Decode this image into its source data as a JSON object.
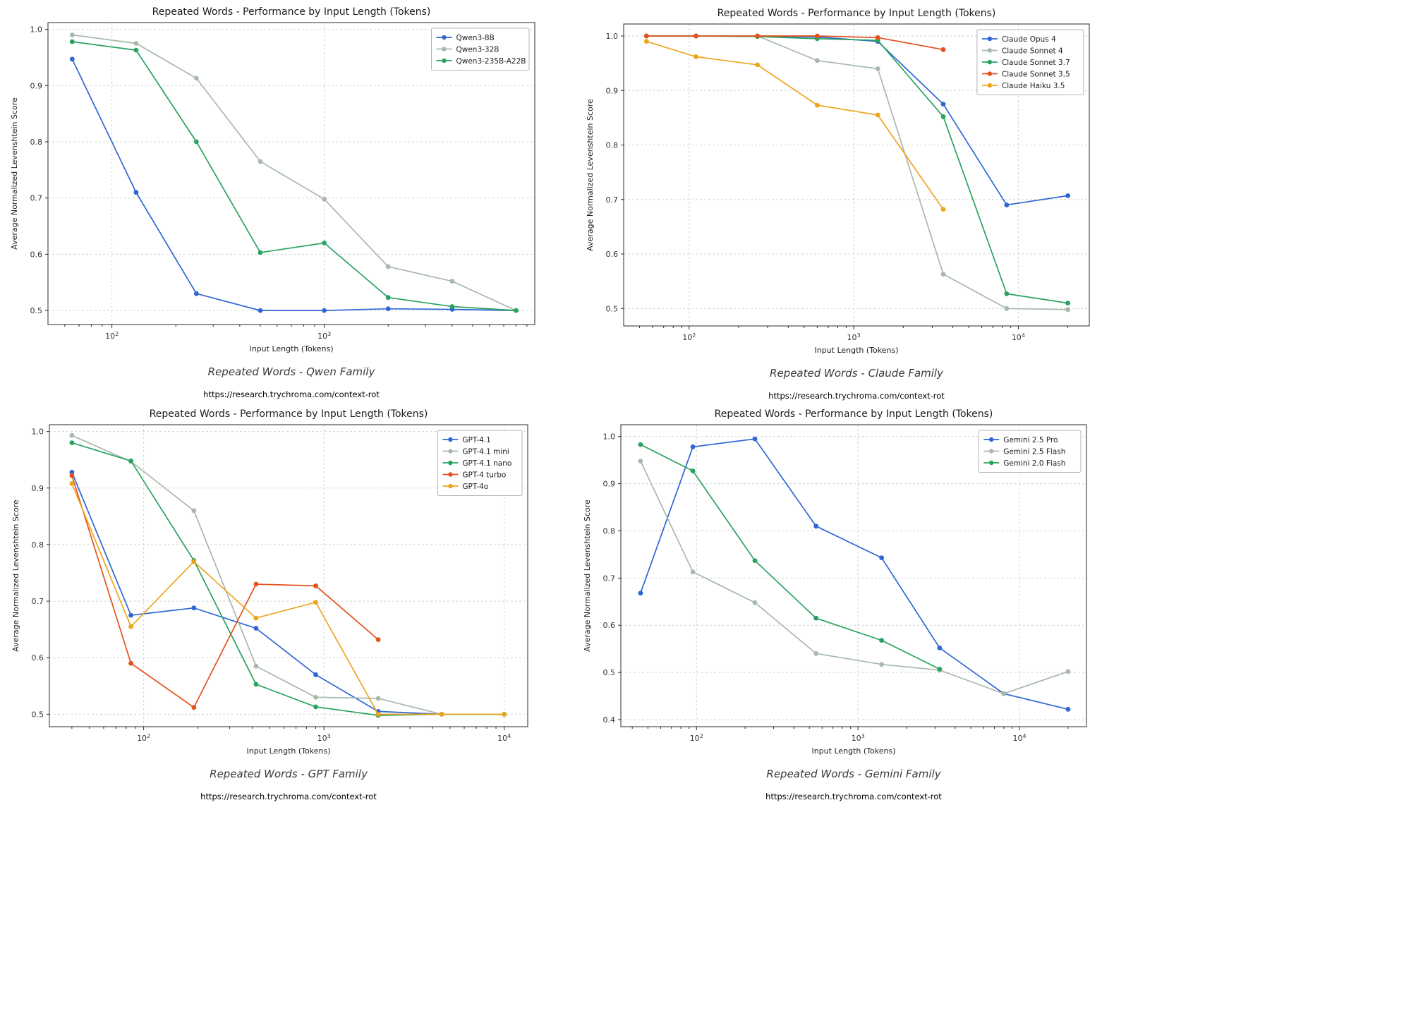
{
  "chart_data": [
    {
      "type": "line",
      "title": "Repeated Words - Performance by Input Length (Tokens)",
      "xlabel": "Input Length (Tokens)",
      "ylabel": "Average Normalized Levenshtein Score",
      "caption": "Repeated Words - Qwen Family",
      "url": "https://research.trychroma.com/context-rot",
      "xscale": "log",
      "xlim": [
        50,
        9800
      ],
      "ylim": [
        0.475,
        1.012
      ],
      "yticks": [
        0.5,
        0.6,
        0.7,
        0.8,
        0.9,
        1.0
      ],
      "grid": true,
      "legend_position": "upper right",
      "series": [
        {
          "name": "Qwen3-8B",
          "color": "#2e66d3",
          "x": [
            65,
            130,
            250,
            500,
            1000,
            2000,
            4000,
            8000
          ],
          "y": [
            0.947,
            0.71,
            0.53,
            0.5,
            0.5,
            0.503,
            0.502,
            0.5
          ]
        },
        {
          "name": "Qwen3-32B",
          "color": "#a8b9ab",
          "x": [
            65,
            130,
            250,
            500,
            1000,
            2000,
            4000,
            8000
          ],
          "y": [
            0.99,
            0.975,
            0.913,
            0.765,
            0.698,
            0.578,
            0.552,
            0.5
          ]
        },
        {
          "name": "Qwen3-235B-A22B",
          "color": "#29a25f",
          "x": [
            65,
            130,
            250,
            500,
            1000,
            2000,
            4000,
            8000
          ],
          "y": [
            0.978,
            0.963,
            0.8,
            0.603,
            0.62,
            0.523,
            0.507,
            0.5
          ]
        }
      ]
    },
    {
      "type": "line",
      "title": "Repeated Words - Performance by Input Length (Tokens)",
      "xlabel": "Input Length (Tokens)",
      "ylabel": "Average Normalized Levenshtein Score",
      "caption": "Repeated Words - Claude Family",
      "url": "https://research.trychroma.com/context-rot",
      "xscale": "log",
      "xlim": [
        40,
        27000
      ],
      "ylim": [
        0.468,
        1.022
      ],
      "yticks": [
        0.5,
        0.6,
        0.7,
        0.8,
        0.9,
        1.0
      ],
      "grid": true,
      "legend_position": "upper right",
      "series": [
        {
          "name": "Claude Opus 4",
          "color": "#2e66d3",
          "x": [
            55,
            110,
            260,
            600,
            1400,
            3500,
            8500,
            20000
          ],
          "y": [
            1.0,
            1.0,
            1.0,
            0.998,
            0.99,
            0.875,
            0.69,
            0.707
          ]
        },
        {
          "name": "Claude Sonnet 4",
          "color": "#a8b9ab",
          "x": [
            55,
            110,
            260,
            600,
            1400,
            3500,
            8500,
            20000
          ],
          "y": [
            1.0,
            1.0,
            1.0,
            0.955,
            0.94,
            0.563,
            0.5,
            0.498
          ]
        },
        {
          "name": "Claude Sonnet 3.7",
          "color": "#29a25f",
          "x": [
            55,
            110,
            260,
            600,
            1400,
            3500,
            8500,
            20000
          ],
          "y": [
            1.0,
            1.0,
            0.999,
            0.995,
            0.992,
            0.852,
            0.527,
            0.51
          ]
        },
        {
          "name": "Claude Sonnet 3.5",
          "color": "#e3511d",
          "x": [
            55,
            110,
            260,
            600,
            1400,
            3500
          ],
          "y": [
            1.0,
            1.0,
            1.0,
            1.0,
            0.997,
            0.975
          ]
        },
        {
          "name": "Claude Haiku 3.5",
          "color": "#eda51e",
          "x": [
            55,
            110,
            260,
            600,
            1400,
            3500
          ],
          "y": [
            0.99,
            0.962,
            0.947,
            0.873,
            0.855,
            0.682
          ]
        }
      ]
    },
    {
      "type": "line",
      "title": "Repeated Words - Performance by Input Length (Tokens)",
      "xlabel": "Input Length (Tokens)",
      "ylabel": "Average Normalized Levenshtein Score",
      "caption": "Repeated Words - GPT Family",
      "url": "https://research.trychroma.com/context-rot",
      "xscale": "log",
      "xlim": [
        30,
        13500
      ],
      "ylim": [
        0.478,
        1.012
      ],
      "yticks": [
        0.5,
        0.6,
        0.7,
        0.8,
        0.9,
        1.0
      ],
      "grid": true,
      "legend_position": "upper right",
      "series": [
        {
          "name": "GPT-4.1",
          "color": "#2e66d3",
          "x": [
            40,
            85,
            190,
            420,
            900,
            2000,
            4500,
            10000
          ],
          "y": [
            0.928,
            0.675,
            0.688,
            0.652,
            0.57,
            0.505,
            0.5,
            0.5
          ]
        },
        {
          "name": "GPT-4.1 mini",
          "color": "#a8b9ab",
          "x": [
            40,
            85,
            190,
            420,
            900,
            2000,
            4500,
            10000
          ],
          "y": [
            0.993,
            0.947,
            0.86,
            0.585,
            0.53,
            0.528,
            0.5,
            0.5
          ]
        },
        {
          "name": "GPT-4.1 nano",
          "color": "#29a25f",
          "x": [
            40,
            85,
            190,
            420,
            900,
            2000,
            4500,
            10000
          ],
          "y": [
            0.98,
            0.948,
            0.772,
            0.553,
            0.513,
            0.498,
            0.5,
            0.5
          ]
        },
        {
          "name": "GPT-4 turbo",
          "color": "#e3511d",
          "x": [
            40,
            85,
            190,
            420,
            900,
            2000
          ],
          "y": [
            0.922,
            0.59,
            0.512,
            0.73,
            0.727,
            0.632
          ]
        },
        {
          "name": "GPT-4o",
          "color": "#eda51e",
          "x": [
            40,
            85,
            190,
            420,
            900,
            2000,
            4500,
            10000
          ],
          "y": [
            0.908,
            0.655,
            0.77,
            0.67,
            0.698,
            0.5,
            0.5,
            0.5
          ]
        }
      ]
    },
    {
      "type": "line",
      "title": "Repeated Words - Performance by Input Length (Tokens)",
      "xlabel": "Input Length (Tokens)",
      "ylabel": "Average Normalized Levenshtein Score",
      "caption": "Repeated Words - Gemini Family",
      "url": "https://research.trychroma.com/context-rot",
      "xscale": "log",
      "xlim": [
        34,
        26000
      ],
      "ylim": [
        0.385,
        1.025
      ],
      "yticks": [
        0.4,
        0.5,
        0.6,
        0.7,
        0.8,
        0.9,
        1.0
      ],
      "grid": true,
      "legend_position": "upper right",
      "series": [
        {
          "name": "Gemini 2.5 Pro",
          "color": "#2e66d3",
          "x": [
            45,
            95,
            230,
            550,
            1400,
            3200,
            8000,
            20000
          ],
          "y": [
            0.668,
            0.978,
            0.995,
            0.81,
            0.743,
            0.552,
            0.455,
            0.422
          ]
        },
        {
          "name": "Gemini 2.5 Flash",
          "color": "#a8b9ab",
          "x": [
            45,
            95,
            230,
            550,
            1400,
            3200,
            8000,
            20000
          ],
          "y": [
            0.948,
            0.713,
            0.648,
            0.54,
            0.517,
            0.505,
            0.455,
            0.502
          ]
        },
        {
          "name": "Gemini 2.0 Flash",
          "color": "#29a25f",
          "x": [
            45,
            95,
            230,
            550,
            1400,
            3200
          ],
          "y": [
            0.983,
            0.927,
            0.737,
            0.615,
            0.568,
            0.507
          ]
        }
      ]
    }
  ]
}
